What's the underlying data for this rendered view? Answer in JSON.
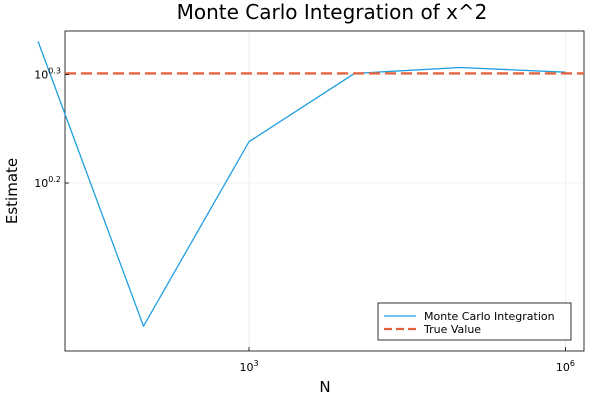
{
  "chart_data": {
    "type": "line",
    "title": "Monte Carlo Integration of x^2",
    "xlabel": "N",
    "ylabel": "Estimate",
    "xscale": "log10",
    "yscale": "log10",
    "xlim": [
      18,
      1500000
    ],
    "ylim": [
      1.11,
      2.188
    ],
    "x_ticks": [
      {
        "value": 1000,
        "base": "10",
        "exp": "3"
      },
      {
        "value": 1000000,
        "base": "10",
        "exp": "6"
      }
    ],
    "y_ticks": [
      {
        "value": 1.585,
        "base": "10",
        "exp": "0.2"
      },
      {
        "value": 1.995,
        "base": "10",
        "exp": "0.3"
      }
    ],
    "grid": true,
    "legend_position": "bottom-right",
    "series": [
      {
        "name": "Monte Carlo Integration",
        "style": "solid",
        "color": "#1f9fe0",
        "x": [
          10,
          100,
          1000,
          10000,
          100000,
          1000000
        ],
        "y": [
          2.14,
          1.17,
          1.73,
          2.0,
          2.025,
          2.005
        ]
      },
      {
        "name": "True Value",
        "style": "dashed",
        "color": "#e5623a",
        "x": [
          18,
          1500000
        ],
        "y": [
          2.0,
          2.0
        ]
      }
    ]
  }
}
